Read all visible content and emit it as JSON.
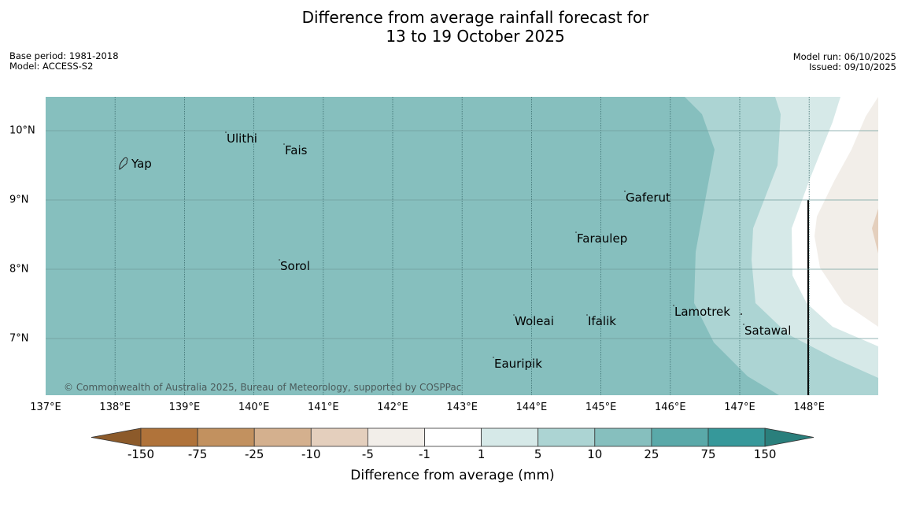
{
  "title": {
    "line1": "Difference from average rainfall forecast for",
    "line2": "13 to 19 October 2025"
  },
  "meta": {
    "base_period": "Base period: 1981-2018",
    "model": "Model: ACCESS-S2",
    "model_run": "Model run: 06/10/2025",
    "issued": "Issued: 09/10/2025"
  },
  "map": {
    "copyright": "© Commonwealth of Australia 2025, Bureau of Meteorology, supported by COSPPac",
    "lon_labels": [
      "137°E",
      "138°E",
      "139°E",
      "140°E",
      "141°E",
      "142°E",
      "143°E",
      "144°E",
      "145°E",
      "146°E",
      "147°E",
      "148°E"
    ],
    "lat_labels": [
      "10°N",
      "9°N",
      "8°N",
      "7°N"
    ],
    "places": [
      {
        "name": "Yap"
      },
      {
        "name": "Ulithi"
      },
      {
        "name": "Fais"
      },
      {
        "name": "Gaferut"
      },
      {
        "name": "Faraulep"
      },
      {
        "name": "Sorol"
      },
      {
        "name": "Lamotrek"
      },
      {
        "name": "Woleai"
      },
      {
        "name": "Ifalik"
      },
      {
        "name": "Satawal"
      },
      {
        "name": "Eauripik"
      }
    ]
  },
  "colorbar": {
    "title": "Difference from average (mm)",
    "ticks": [
      "-150",
      "-75",
      "-25",
      "-10",
      "-5",
      "-1",
      "1",
      "5",
      "10",
      "25",
      "75",
      "150"
    ],
    "colors": {
      "extend_low": "#8c5a2a",
      "bins": [
        "#b0733a",
        "#c2915f",
        "#d4b08e",
        "#e4cfbd",
        "#f2eee9",
        "#ffffff",
        "#d6e9e8",
        "#acd4d3",
        "#86bfbe",
        "#5aa9a9",
        "#36989a"
      ],
      "extend_high": "#2a7f7c"
    }
  }
}
